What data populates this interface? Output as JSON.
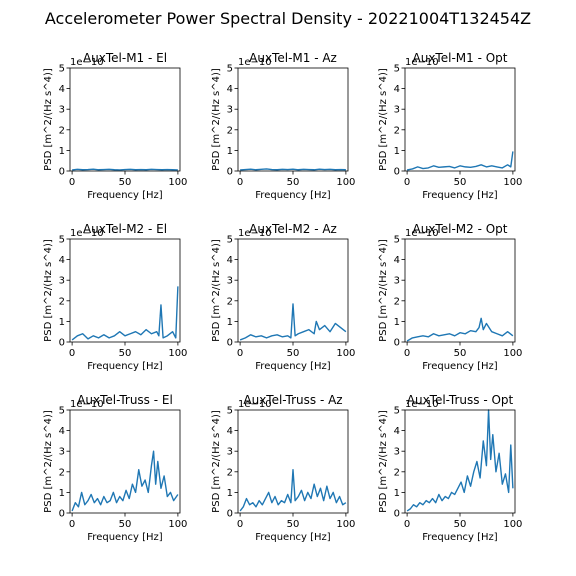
{
  "figure": {
    "title": "Accelerometer Power Spectral Density - 20221004T132454Z",
    "line_color": "#1f77b4"
  },
  "chart_data": [
    {
      "type": "line",
      "title": "AuxTel-M1 - El",
      "xlabel": "Frequency [Hz]",
      "ylabel": "PSD [m^2/(Hz s^4)]",
      "offset_text": "1e−10",
      "xlim": [
        -2,
        102
      ],
      "ylim": [
        0,
        5
      ],
      "xticks": [
        0,
        50,
        100
      ],
      "yticks": [
        0,
        1,
        2,
        3,
        4,
        5
      ],
      "x": [
        0,
        5,
        10,
        15,
        20,
        25,
        30,
        35,
        40,
        45,
        50,
        55,
        60,
        65,
        70,
        75,
        80,
        85,
        90,
        95,
        100
      ],
      "y": [
        0.05,
        0.08,
        0.06,
        0.07,
        0.09,
        0.06,
        0.07,
        0.08,
        0.06,
        0.05,
        0.07,
        0.08,
        0.06,
        0.07,
        0.06,
        0.08,
        0.07,
        0.06,
        0.07,
        0.06,
        0.05
      ]
    },
    {
      "type": "line",
      "title": "AuxTel-M1 - Az",
      "xlabel": "Frequency [Hz]",
      "ylabel": "PSD [m^2/(Hz s^4)]",
      "offset_text": "1e−10",
      "xlim": [
        -2,
        102
      ],
      "ylim": [
        0,
        5
      ],
      "xticks": [
        0,
        50,
        100
      ],
      "yticks": [
        0,
        1,
        2,
        3,
        4,
        5
      ],
      "x": [
        0,
        5,
        10,
        15,
        20,
        25,
        30,
        35,
        40,
        45,
        50,
        55,
        60,
        65,
        70,
        75,
        80,
        85,
        90,
        95,
        100
      ],
      "y": [
        0.05,
        0.07,
        0.09,
        0.06,
        0.08,
        0.1,
        0.07,
        0.06,
        0.08,
        0.07,
        0.09,
        0.06,
        0.08,
        0.07,
        0.06,
        0.09,
        0.07,
        0.08,
        0.06,
        0.07,
        0.06
      ]
    },
    {
      "type": "line",
      "title": "AuxTel-M1 - Opt",
      "xlabel": "Frequency [Hz]",
      "ylabel": "PSD [m^2/(Hz s^4)]",
      "offset_text": "1e−10",
      "xlim": [
        -2,
        102
      ],
      "ylim": [
        0,
        5
      ],
      "xticks": [
        0,
        50,
        100
      ],
      "yticks": [
        0,
        1,
        2,
        3,
        4,
        5
      ],
      "x": [
        0,
        5,
        10,
        15,
        20,
        25,
        30,
        35,
        40,
        45,
        50,
        55,
        60,
        65,
        70,
        75,
        80,
        85,
        90,
        95,
        98,
        100
      ],
      "y": [
        0.05,
        0.1,
        0.2,
        0.12,
        0.15,
        0.25,
        0.18,
        0.2,
        0.22,
        0.15,
        0.25,
        0.2,
        0.18,
        0.22,
        0.3,
        0.2,
        0.25,
        0.2,
        0.15,
        0.3,
        0.2,
        0.95
      ]
    },
    {
      "type": "line",
      "title": "AuxTel-M2 - El",
      "xlabel": "Frequency [Hz]",
      "ylabel": "PSD [m^2/(Hz s^4)]",
      "offset_text": "1e−10",
      "xlim": [
        -2,
        102
      ],
      "ylim": [
        0,
        5
      ],
      "xticks": [
        0,
        50,
        100
      ],
      "yticks": [
        0,
        1,
        2,
        3,
        4,
        5
      ],
      "x": [
        0,
        5,
        10,
        15,
        20,
        25,
        30,
        35,
        40,
        45,
        50,
        55,
        60,
        65,
        70,
        75,
        80,
        82,
        84,
        86,
        90,
        95,
        98,
        100
      ],
      "y": [
        0.1,
        0.3,
        0.4,
        0.15,
        0.3,
        0.2,
        0.35,
        0.2,
        0.3,
        0.5,
        0.3,
        0.4,
        0.5,
        0.35,
        0.6,
        0.4,
        0.5,
        0.3,
        1.8,
        0.2,
        0.3,
        0.5,
        0.2,
        2.7
      ]
    },
    {
      "type": "line",
      "title": "AuxTel-M2 - Az",
      "xlabel": "Frequency [Hz]",
      "ylabel": "PSD [m^2/(Hz s^4)]",
      "offset_text": "1e−10",
      "xlim": [
        -2,
        102
      ],
      "ylim": [
        0,
        5
      ],
      "xticks": [
        0,
        50,
        100
      ],
      "yticks": [
        0,
        1,
        2,
        3,
        4,
        5
      ],
      "x": [
        0,
        5,
        10,
        15,
        20,
        25,
        30,
        35,
        40,
        45,
        48,
        50,
        52,
        55,
        60,
        65,
        70,
        72,
        75,
        80,
        85,
        90,
        95,
        100
      ],
      "y": [
        0.1,
        0.2,
        0.35,
        0.25,
        0.3,
        0.2,
        0.3,
        0.35,
        0.25,
        0.3,
        0.2,
        1.85,
        0.3,
        0.4,
        0.5,
        0.6,
        0.4,
        1.0,
        0.6,
        0.8,
        0.5,
        0.9,
        0.7,
        0.5
      ]
    },
    {
      "type": "line",
      "title": "AuxTel-M2 - Opt",
      "xlabel": "Frequency [Hz]",
      "ylabel": "PSD [m^2/(Hz s^4)]",
      "offset_text": "1e−10",
      "xlim": [
        -2,
        102
      ],
      "ylim": [
        0,
        5
      ],
      "xticks": [
        0,
        50,
        100
      ],
      "yticks": [
        0,
        1,
        2,
        3,
        4,
        5
      ],
      "x": [
        0,
        5,
        10,
        15,
        20,
        25,
        30,
        35,
        40,
        45,
        50,
        55,
        60,
        65,
        68,
        70,
        72,
        75,
        80,
        85,
        90,
        95,
        100
      ],
      "y": [
        0.05,
        0.2,
        0.25,
        0.3,
        0.25,
        0.4,
        0.3,
        0.35,
        0.4,
        0.3,
        0.45,
        0.4,
        0.55,
        0.5,
        0.7,
        1.15,
        0.6,
        0.9,
        0.5,
        0.4,
        0.3,
        0.5,
        0.3
      ]
    },
    {
      "type": "line",
      "title": "AuxTel-Truss - El",
      "xlabel": "Frequency [Hz]",
      "ylabel": "PSD [m^2/(Hz s^4)]",
      "offset_text": "1e−10",
      "xlim": [
        -2,
        102
      ],
      "ylim": [
        0,
        5
      ],
      "xticks": [
        0,
        50,
        100
      ],
      "yticks": [
        0,
        1,
        2,
        3,
        4,
        5
      ],
      "x": [
        0,
        3,
        6,
        9,
        12,
        15,
        18,
        21,
        24,
        27,
        30,
        33,
        36,
        39,
        42,
        45,
        48,
        51,
        54,
        57,
        60,
        63,
        66,
        69,
        72,
        75,
        77,
        79,
        81,
        84,
        87,
        90,
        93,
        96,
        100
      ],
      "y": [
        0.1,
        0.5,
        0.3,
        1.0,
        0.4,
        0.6,
        0.9,
        0.5,
        0.7,
        0.4,
        0.8,
        0.5,
        0.6,
        1.0,
        0.5,
        0.8,
        0.6,
        1.1,
        0.7,
        1.4,
        1.0,
        2.1,
        1.3,
        1.6,
        1.0,
        2.3,
        3.0,
        1.4,
        2.5,
        1.2,
        1.8,
        0.8,
        1.0,
        0.6,
        0.9
      ]
    },
    {
      "type": "line",
      "title": "AuxTel-Truss - Az",
      "xlabel": "Frequency [Hz]",
      "ylabel": "PSD [m^2/(Hz s^4)]",
      "offset_text": "1e−10",
      "xlim": [
        -2,
        102
      ],
      "ylim": [
        0,
        5
      ],
      "xticks": [
        0,
        50,
        100
      ],
      "yticks": [
        0,
        1,
        2,
        3,
        4,
        5
      ],
      "x": [
        0,
        3,
        6,
        9,
        12,
        15,
        18,
        21,
        24,
        27,
        30,
        33,
        36,
        39,
        42,
        45,
        48,
        50,
        52,
        55,
        58,
        61,
        64,
        67,
        70,
        73,
        76,
        79,
        82,
        85,
        88,
        91,
        94,
        97,
        100
      ],
      "y": [
        0.1,
        0.3,
        0.7,
        0.4,
        0.5,
        0.3,
        0.6,
        0.4,
        0.7,
        1.0,
        0.5,
        0.8,
        0.4,
        0.6,
        0.5,
        0.9,
        0.5,
        2.1,
        0.6,
        0.8,
        1.1,
        0.6,
        1.0,
        0.7,
        1.4,
        0.8,
        1.2,
        0.6,
        1.3,
        0.7,
        1.0,
        0.5,
        0.8,
        0.4,
        0.5
      ]
    },
    {
      "type": "line",
      "title": "AuxTel-Truss - Opt",
      "xlabel": "Frequency [Hz]",
      "ylabel": "PSD [m^2/(Hz s^4)]",
      "offset_text": "1e−10",
      "xlim": [
        -2,
        102
      ],
      "ylim": [
        0,
        5
      ],
      "xticks": [
        0,
        50,
        100
      ],
      "yticks": [
        0,
        1,
        2,
        3,
        4,
        5
      ],
      "x": [
        0,
        3,
        6,
        9,
        12,
        15,
        18,
        21,
        24,
        27,
        30,
        33,
        36,
        39,
        42,
        45,
        48,
        51,
        54,
        57,
        60,
        63,
        66,
        69,
        72,
        75,
        77,
        79,
        81,
        84,
        87,
        90,
        93,
        96,
        98,
        100
      ],
      "y": [
        0.1,
        0.2,
        0.4,
        0.3,
        0.5,
        0.4,
        0.6,
        0.5,
        0.7,
        0.5,
        0.9,
        0.6,
        0.8,
        0.7,
        1.0,
        0.9,
        1.2,
        1.5,
        1.0,
        1.8,
        1.3,
        2.0,
        2.5,
        1.7,
        3.5,
        2.3,
        5.0,
        2.6,
        3.8,
        2.0,
        2.9,
        1.4,
        1.9,
        1.0,
        3.3,
        1.2
      ]
    }
  ]
}
